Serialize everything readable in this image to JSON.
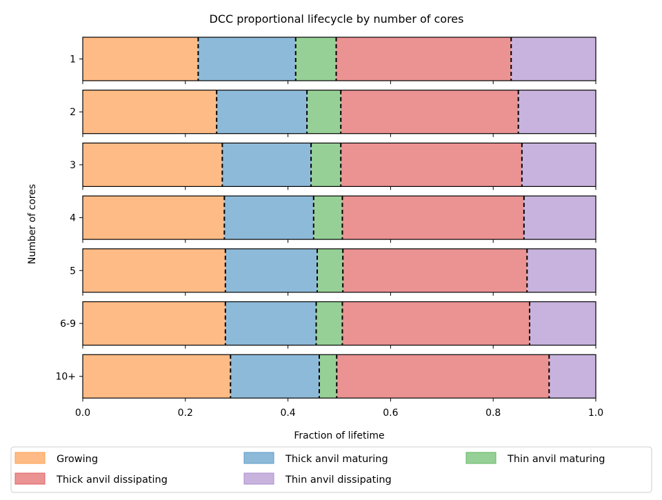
{
  "chart_data": {
    "type": "bar",
    "orientation": "horizontal",
    "stacked": true,
    "title": "DCC proportional lifecycle by number of cores",
    "xlabel": "Fraction of lifetime",
    "ylabel": "Number of cores",
    "xlim": [
      0.0,
      1.0
    ],
    "xticks": [
      "0.0",
      "0.2",
      "0.4",
      "0.6",
      "0.8",
      "1.0"
    ],
    "categories": [
      "1",
      "2",
      "3",
      "4",
      "5",
      "6-9",
      "10+"
    ],
    "series": [
      {
        "name": "Growing",
        "color": "#ffbb85",
        "edge": "#ff9f4a",
        "values": [
          0.225,
          0.261,
          0.272,
          0.276,
          0.278,
          0.278,
          0.288
        ]
      },
      {
        "name": "Thick anvil maturing",
        "color": "#8ebad9",
        "edge": "#5b9bc8",
        "values": [
          0.19,
          0.176,
          0.173,
          0.174,
          0.179,
          0.177,
          0.173
        ]
      },
      {
        "name": "Thin anvil maturing",
        "color": "#96d096",
        "edge": "#63b963",
        "values": [
          0.079,
          0.066,
          0.058,
          0.056,
          0.05,
          0.051,
          0.034
        ]
      },
      {
        "name": "Thick anvil dissipating",
        "color": "#eb9293",
        "edge": "#df6363",
        "values": [
          0.341,
          0.346,
          0.353,
          0.354,
          0.359,
          0.365,
          0.414
        ]
      },
      {
        "name": "Thin anvil dissipating",
        "color": "#c8b3de",
        "edge": "#ad8ccf",
        "values": [
          0.165,
          0.151,
          0.144,
          0.14,
          0.134,
          0.129,
          0.091
        ]
      }
    ],
    "boundary_lines": "black dashed",
    "legend": {
      "position": "bottom",
      "columns": 3
    },
    "grid": false
  }
}
